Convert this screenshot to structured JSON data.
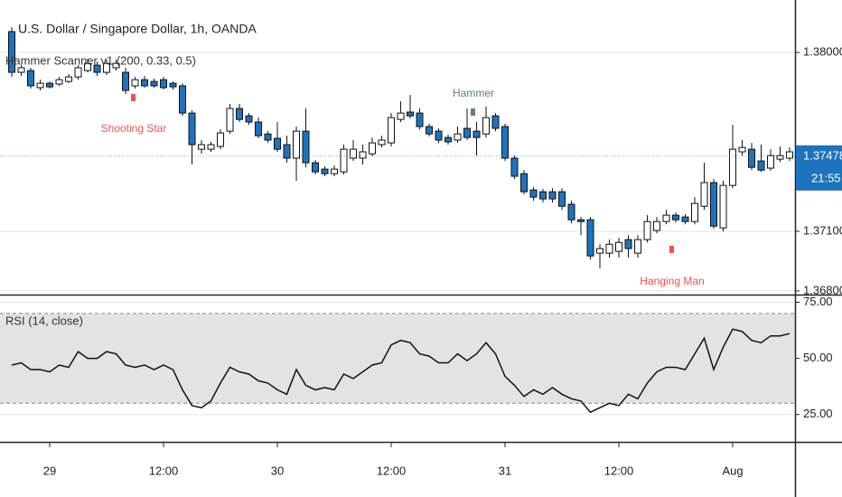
{
  "chart_data": [
    {
      "type": "candlestick",
      "title": "U.S. Dollar / Singapore Dollar, 1h, OANDA",
      "indicator": "Hammer Scanner v1 (200, 0.33, 0.5)",
      "x": [
        -4,
        -3,
        -2,
        -1,
        0,
        1,
        2,
        3,
        4,
        5,
        6,
        7,
        8,
        9,
        10,
        11,
        12,
        13,
        14,
        15,
        16,
        17,
        18,
        19,
        20,
        21,
        22,
        23,
        24,
        25,
        26,
        27,
        28,
        29,
        30,
        31,
        32,
        33,
        34,
        35,
        36,
        37,
        38,
        39,
        40,
        41,
        42,
        43,
        44,
        45,
        46,
        47,
        48,
        49,
        50,
        51,
        52,
        53,
        54,
        55,
        56,
        57,
        58,
        59,
        60,
        61,
        62,
        63,
        64,
        65,
        66,
        67,
        68,
        69,
        70,
        71,
        72,
        73,
        74,
        75,
        76,
        77,
        78
      ],
      "open": [
        1.38105,
        1.379,
        1.37909,
        1.37823,
        1.37845,
        1.37841,
        1.37854,
        1.37877,
        1.37909,
        1.37936,
        1.379,
        1.37923,
        1.379,
        1.37832,
        1.37863,
        1.37854,
        1.37863,
        1.37845,
        1.37832,
        1.37695,
        1.37513,
        1.37513,
        1.37527,
        1.37604,
        1.37718,
        1.37681,
        1.3765,
        1.3759,
        1.37568,
        1.37536,
        1.37468,
        1.37604,
        1.37445,
        1.37413,
        1.3739,
        1.37399,
        1.37468,
        1.37468,
        1.3749,
        1.37536,
        1.37545,
        1.37663,
        1.377,
        1.37695,
        1.37627,
        1.37604,
        1.37572,
        1.37559,
        1.37618,
        1.37604,
        1.3759,
        1.37681,
        1.37627,
        1.37468,
        1.3739,
        1.37308,
        1.37299,
        1.37299,
        1.37299,
        1.37236,
        1.37158,
        1.37158,
        1.3699,
        1.3699,
        1.36999,
        1.37058,
        1.3699,
        1.37058,
        1.37104,
        1.37149,
        1.37181,
        1.37172,
        1.37149,
        1.37226,
        1.37345,
        1.37117,
        1.37331,
        1.375,
        1.37513,
        1.37454,
        1.37418,
        1.37463,
        1.37468
      ],
      "high": [
        1.38127,
        1.37936,
        1.37923,
        1.37863,
        1.37854,
        1.37877,
        1.37891,
        1.37936,
        1.37968,
        1.37954,
        1.37964,
        1.37964,
        1.37923,
        1.37877,
        1.37882,
        1.37868,
        1.37877,
        1.37854,
        1.37845,
        1.37709,
        1.37559,
        1.3755,
        1.37613,
        1.37741,
        1.37741,
        1.37695,
        1.37672,
        1.37604,
        1.3765,
        1.37581,
        1.37627,
        1.37718,
        1.37459,
        1.37427,
        1.37431,
        1.37536,
        1.37559,
        1.37536,
        1.37572,
        1.37581,
        1.37695,
        1.37754,
        1.37786,
        1.37718,
        1.37641,
        1.37618,
        1.37586,
        1.37627,
        1.37718,
        1.3765,
        1.37727,
        1.37695,
        1.37641,
        1.37481,
        1.37408,
        1.37322,
        1.37313,
        1.37317,
        1.37317,
        1.37254,
        1.37172,
        1.37172,
        1.37035,
        1.37058,
        1.37067,
        1.37081,
        1.37081,
        1.37181,
        1.37172,
        1.37208,
        1.37195,
        1.37186,
        1.37272,
        1.37445,
        1.37363,
        1.37354,
        1.37636,
        1.37559,
        1.37545,
        1.37536,
        1.37513,
        1.37527,
        1.37522
      ],
      "low": [
        1.37877,
        1.37882,
        1.37818,
        1.37809,
        1.37818,
        1.37832,
        1.37845,
        1.37863,
        1.379,
        1.37882,
        1.37886,
        1.37909,
        1.37791,
        1.37818,
        1.37823,
        1.37823,
        1.37813,
        1.37813,
        1.37681,
        1.37436,
        1.3749,
        1.375,
        1.37513,
        1.3759,
        1.3765,
        1.37636,
        1.37568,
        1.37545,
        1.375,
        1.37445,
        1.37354,
        1.37422,
        1.37386,
        1.37377,
        1.37377,
        1.37386,
        1.37454,
        1.37436,
        1.37477,
        1.37522,
        1.37527,
        1.3765,
        1.37668,
        1.37613,
        1.37577,
        1.37545,
        1.37536,
        1.37545,
        1.37559,
        1.37481,
        1.37572,
        1.37604,
        1.37454,
        1.37363,
        1.37286,
        1.37254,
        1.37245,
        1.37245,
        1.37208,
        1.3714,
        1.37081,
        1.36958,
        1.36913,
        1.36967,
        1.36967,
        1.36967,
        1.36967,
        1.37044,
        1.3709,
        1.37135,
        1.37145,
        1.37135,
        1.37135,
        1.37208,
        1.37113,
        1.37099,
        1.37317,
        1.37481,
        1.37408,
        1.37399,
        1.37404,
        1.37449,
        1.37454
      ],
      "close": [
        1.379,
        1.37923,
        1.37832,
        1.37845,
        1.37827,
        1.37863,
        1.37877,
        1.37923,
        1.37945,
        1.379,
        1.37945,
        1.37945,
        1.37809,
        1.37863,
        1.37832,
        1.37832,
        1.37823,
        1.37827,
        1.37695,
        1.37536,
        1.37536,
        1.37536,
        1.37595,
        1.37718,
        1.37663,
        1.3765,
        1.37581,
        1.37559,
        1.37513,
        1.37468,
        1.37604,
        1.37445,
        1.37399,
        1.3739,
        1.37413,
        1.37513,
        1.37513,
        1.375,
        1.37545,
        1.37559,
        1.37672,
        1.37695,
        1.37681,
        1.37627,
        1.3759,
        1.37559,
        1.3755,
        1.3759,
        1.37572,
        1.37572,
        1.37672,
        1.37618,
        1.37468,
        1.37377,
        1.37299,
        1.37272,
        1.37263,
        1.37263,
        1.37226,
        1.37158,
        1.37149,
        1.36976,
        1.37013,
        1.37035,
        1.37044,
        1.37013,
        1.37058,
        1.37149,
        1.37149,
        1.37181,
        1.37158,
        1.37149,
        1.3724,
        1.37345,
        1.37126,
        1.37331,
        1.37513,
        1.37522,
        1.37422,
        1.37408,
        1.37481,
        1.37481,
        1.375
      ],
      "xlim": [
        -5.24,
        78.57
      ],
      "xticks": [
        {
          "value": 0,
          "label": "29"
        },
        {
          "value": 12,
          "label": "12:00"
        },
        {
          "value": 24,
          "label": "30"
        },
        {
          "value": 36,
          "label": "12:00"
        },
        {
          "value": 48,
          "label": "31"
        },
        {
          "value": 60,
          "label": "12:00"
        },
        {
          "value": 72,
          "label": "Aug"
        }
      ],
      "ylim": [
        1.36786,
        1.38264
      ],
      "yticks": [
        {
          "value": 1.38,
          "label": "1.38000"
        },
        {
          "value": 1.371,
          "label": "1.37100"
        },
        {
          "value": 1.368,
          "label": "1.36800"
        }
      ],
      "grid": true,
      "up_color": "#ffffff",
      "down_color": "#1e73be",
      "last_price": 1.37478,
      "countdown": "21:55",
      "annotations": [
        {
          "text": "Shooting Star",
          "color": "#ef5350"
        },
        {
          "text": "Hammer",
          "color": "#5b8a5b"
        },
        {
          "text": "Hanging Man",
          "color": "#ef5350"
        }
      ]
    },
    {
      "type": "line",
      "title": "RSI (14, close)",
      "values": [
        47,
        48,
        45,
        45,
        44,
        47,
        46,
        53,
        50,
        50,
        53,
        52,
        47,
        46,
        47,
        45,
        47,
        45,
        36,
        29,
        28,
        31,
        39,
        46,
        44,
        43,
        40,
        39,
        36,
        34,
        45,
        38,
        36,
        37,
        36,
        43,
        41,
        44,
        47,
        48,
        56,
        58,
        57,
        52,
        51,
        48,
        48,
        52,
        49,
        52,
        57,
        52,
        42,
        38,
        33,
        36,
        34,
        37,
        34,
        32,
        31,
        26,
        28,
        30,
        29,
        34,
        32,
        39,
        44,
        46,
        46,
        45,
        52,
        59,
        45,
        55,
        63,
        62,
        58,
        57,
        60,
        60,
        61
      ],
      "color": "#111111",
      "ylim": [
        12.8,
        77.6
      ],
      "yticks": [
        {
          "value": 25,
          "label": "25.00"
        },
        {
          "value": 50,
          "label": "50.00"
        },
        {
          "value": 75,
          "label": "75.00"
        }
      ],
      "bands": [
        30,
        70
      ],
      "band_color": "#e3e3e3"
    }
  ]
}
